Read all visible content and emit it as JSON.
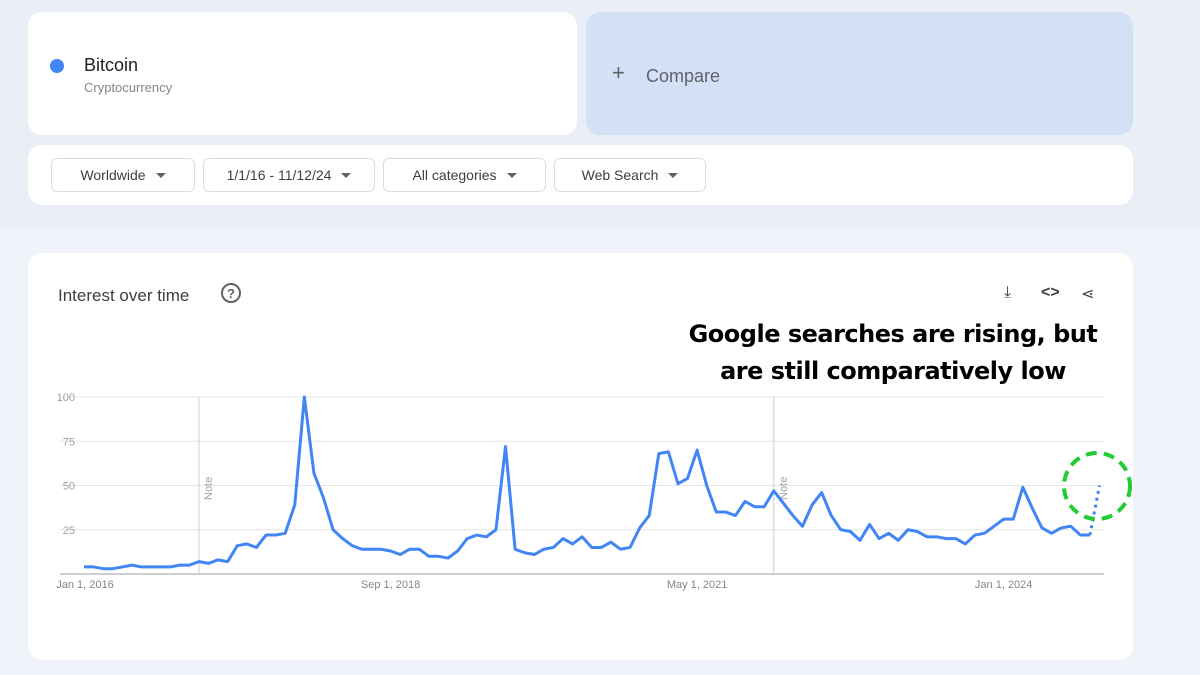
{
  "term": {
    "name": "Bitcoin",
    "type": "Cryptocurrency",
    "color": "#4285f4"
  },
  "compare": {
    "icon": "plus-icon",
    "label": "Compare"
  },
  "filters": [
    {
      "label": "Worldwide"
    },
    {
      "label": "1/1/16 - 11/12/24"
    },
    {
      "label": "All categories"
    },
    {
      "label": "Web Search"
    }
  ],
  "chart_card": {
    "title": "Interest over time",
    "help": "?",
    "icons": [
      "download-icon",
      "embed-code-icon",
      "share-icon"
    ],
    "annotation_line1": "Google searches are rising, but",
    "annotation_line2": "are still comparatively low",
    "highlight_color": "#22cc33"
  },
  "chart_data": {
    "type": "line",
    "title": "",
    "xlabel": "",
    "ylabel": "",
    "ylim": [
      0,
      100
    ],
    "yticks": [
      "25",
      "50",
      "75",
      "100"
    ],
    "xticks": [
      {
        "label": "Jan 1, 2016",
        "date": "2016-01"
      },
      {
        "label": "Sep 1, 2018",
        "date": "2018-09"
      },
      {
        "label": "May 1, 2021",
        "date": "2021-05"
      },
      {
        "label": "Jan 1, 2024",
        "date": "2024-01"
      }
    ],
    "notes": [
      {
        "label": "Note",
        "date": "2017-01"
      },
      {
        "label": "Note",
        "date": "2022-01"
      }
    ],
    "start": "2016-01",
    "frequency": "monthly",
    "color": "#4285f4",
    "grid": true,
    "values": [
      4,
      4,
      3,
      3,
      4,
      5,
      4,
      4,
      4,
      4,
      5,
      5,
      7,
      6,
      8,
      7,
      16,
      17,
      15,
      22,
      22,
      23,
      39,
      100,
      57,
      43,
      25,
      20,
      16,
      14,
      14,
      14,
      13,
      11,
      14,
      14,
      10,
      10,
      9,
      13,
      20,
      22,
      21,
      25,
      72,
      14,
      12,
      11,
      14,
      15,
      20,
      17,
      21,
      15,
      15,
      18,
      14,
      15,
      26,
      33,
      68,
      69,
      51,
      54,
      70,
      50,
      35,
      35,
      33,
      41,
      38,
      38,
      47,
      40,
      33,
      27,
      39,
      46,
      33,
      25,
      24,
      19,
      28,
      20,
      23,
      19,
      25,
      24,
      21,
      21,
      20,
      20,
      17,
      22,
      23,
      27,
      31,
      31,
      49,
      37,
      26,
      23,
      26,
      27,
      22,
      22
    ],
    "partial": {
      "date": "2024-11",
      "value": 50,
      "style": "dotted"
    }
  }
}
